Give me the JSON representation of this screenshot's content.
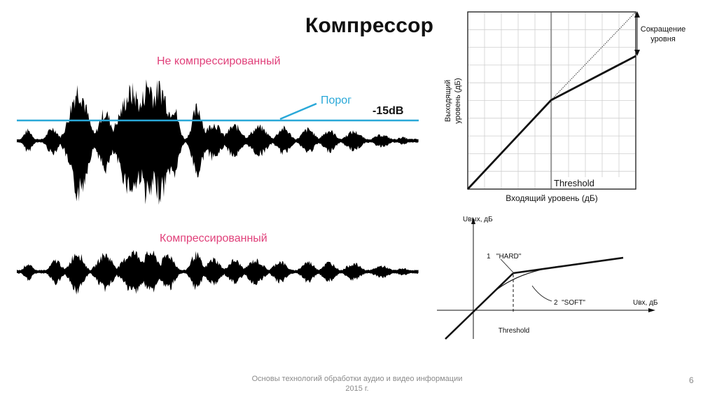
{
  "slide": {
    "title": "Компрессор",
    "footer_line1": "Основы технологий обработки аудио и видео информации",
    "footer_line2": "2015 г.",
    "page_number": "6"
  },
  "waveforms": {
    "uncompressed_label": "Не компрессированный",
    "compressed_label": "Компрессированный",
    "threshold_label": "Порог",
    "threshold_value": "-15dB",
    "label_color": "#e0407a",
    "threshold_color": "#29a8d8"
  },
  "transfer_chart": {
    "ylabel_line1": "Выходящий",
    "ylabel_line2": "уровень (дБ)",
    "xlabel": "Входящий уровень (дБ)",
    "threshold_label": "Threshold",
    "reduction_line1": "Сокращение",
    "reduction_line2": "уровня"
  },
  "knee_chart": {
    "y_axis_label": "Uвых, дБ",
    "x_axis_label": "Uвх, дБ",
    "hard_label": "1   \"HARD\"",
    "soft_label": "2  \"SOFT\"",
    "threshold_label": "Threshold"
  }
}
